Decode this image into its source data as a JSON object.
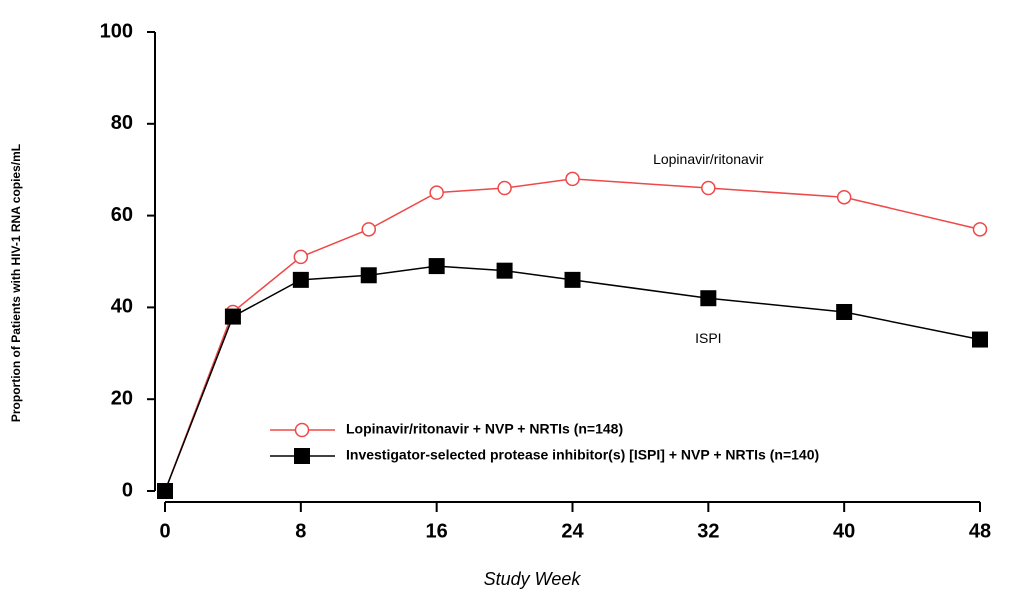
{
  "chart_data": {
    "type": "line",
    "x_label": "Study Week",
    "y_label": "Proportion of Patients with HIV-1 RNA copies/mL",
    "x": [
      0,
      4,
      8,
      12,
      16,
      20,
      24,
      32,
      40,
      48
    ],
    "series": [
      {
        "name": "Lopinavir/ritonavir + NVP + NRTIs (n=148)",
        "color": "#f04848",
        "marker": "open-circle",
        "values": [
          0,
          39,
          51,
          57,
          65,
          66,
          68,
          66,
          64,
          57
        ]
      },
      {
        "name": "Investigator-selected protease inhibitor(s) [ISPI] + NVP + NRTIs (n=140)",
        "color": "#000000",
        "marker": "filled-square",
        "values": [
          0,
          38,
          46,
          47,
          49,
          48,
          46,
          42,
          39,
          33
        ]
      }
    ],
    "annotations": [
      {
        "text": "Lopinavir/ritonavir",
        "x": 32,
        "y": 72
      },
      {
        "text": "ISPI",
        "x": 32,
        "y": 33
      }
    ],
    "xlim": [
      0,
      48
    ],
    "xticks": [
      0,
      8,
      16,
      24,
      32,
      40,
      48
    ],
    "ylim": [
      0,
      100
    ],
    "yticks": [
      0,
      20,
      40,
      60,
      80,
      100
    ],
    "grid": false,
    "legend": "lower right"
  }
}
